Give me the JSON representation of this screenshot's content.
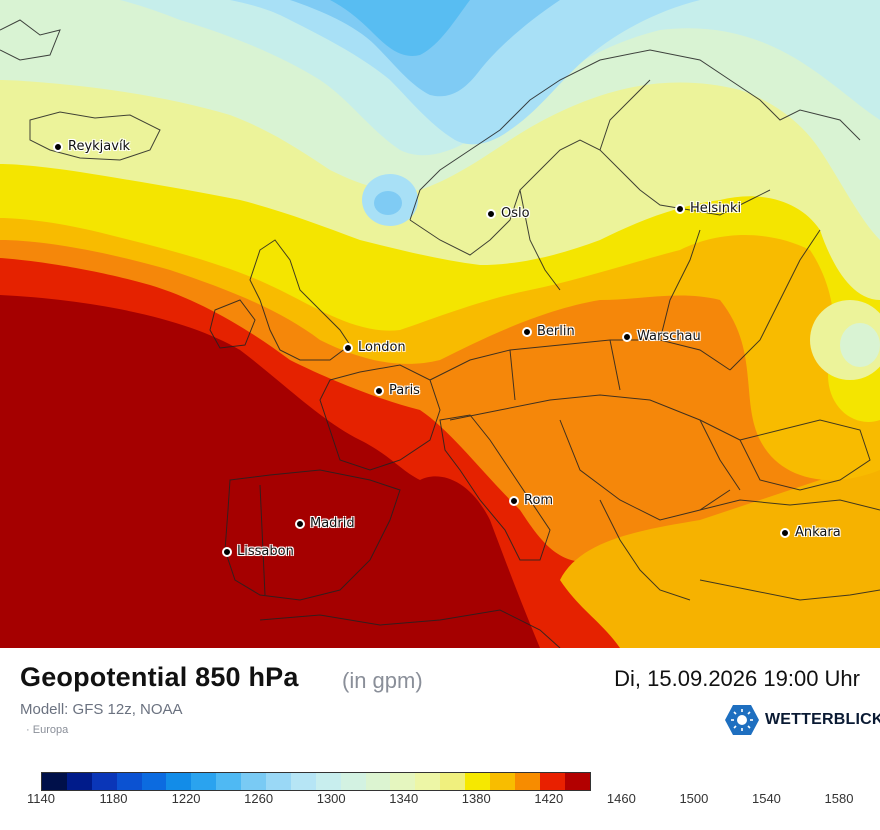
{
  "map": {
    "cities": [
      {
        "name": "Reykjavík"
      },
      {
        "name": "Oslo"
      },
      {
        "name": "Helsinki"
      },
      {
        "name": "London"
      },
      {
        "name": "Berlin"
      },
      {
        "name": "Warschau"
      },
      {
        "name": "Paris"
      },
      {
        "name": "Rom"
      },
      {
        "name": "Madrid"
      },
      {
        "name": "Lissabon"
      },
      {
        "name": "Ankara"
      }
    ]
  },
  "header": {
    "title": "Geopotential 850 hPa",
    "unit": "(in gpm)",
    "datetime": "Di, 15.09.2026 19:00 Uhr",
    "model": "Modell: GFS 12z, NOAA",
    "region": "Europa",
    "brand": "WETTERBLICK"
  },
  "legend": {
    "colors": [
      "#00104a",
      "#001b8a",
      "#0a36b8",
      "#0b52d2",
      "#0c6be0",
      "#128ce8",
      "#2aa3ef",
      "#4fb9f3",
      "#79caf4",
      "#9ad8f6",
      "#b6e5f5",
      "#c8eeee",
      "#d3f2e2",
      "#dcf4d1",
      "#e5f6bf",
      "#edf6a6",
      "#f0f07e",
      "#f6e800",
      "#f8bd00",
      "#f78c00",
      "#e92000",
      "#b20000"
    ],
    "ticks": [
      "1140",
      "1180",
      "1220",
      "1260",
      "1300",
      "1340",
      "1380",
      "1420",
      "1460",
      "1500",
      "1540",
      "1580"
    ]
  }
}
